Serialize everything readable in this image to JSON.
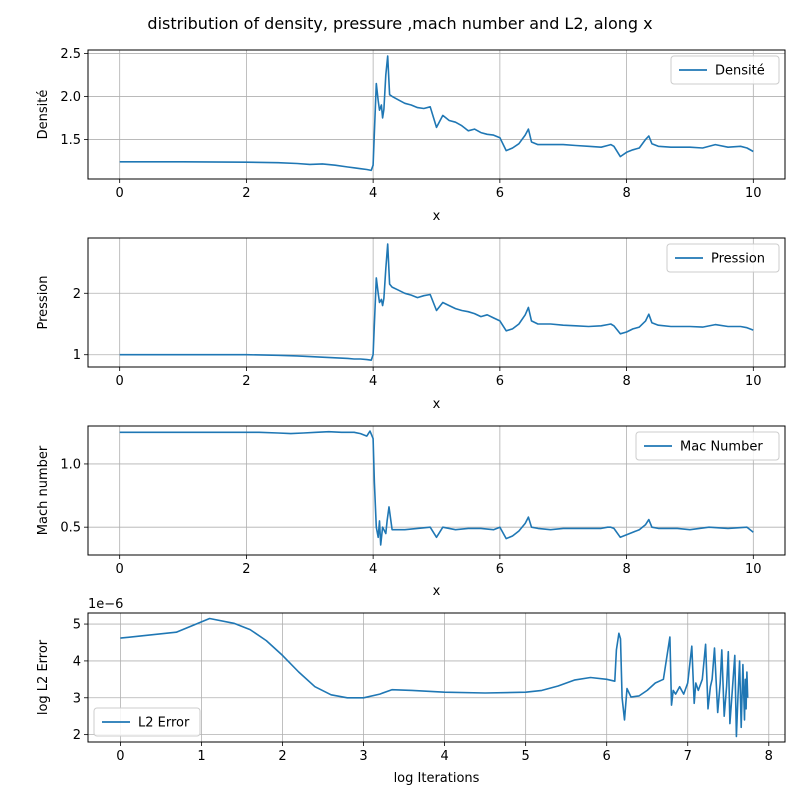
{
  "figure": {
    "title": "distribution of density, pressure ,mach number and L2, along x",
    "line_color": "#1f77b4"
  },
  "chart_data": [
    {
      "type": "line",
      "xlabel": "x",
      "ylabel": "Densité",
      "xlim": [
        -0.5,
        10.5
      ],
      "ylim": [
        1.04,
        2.54
      ],
      "xticks": [
        0,
        2,
        4,
        6,
        8,
        10
      ],
      "yticks": [
        1.5,
        2.0,
        2.5
      ],
      "ytick_labels": [
        "1.5",
        "2.0",
        "2.5"
      ],
      "grid": true,
      "legend_position": "upper right",
      "series": [
        {
          "name": "Densité",
          "x": [
            0,
            1.0,
            2.0,
            2.5,
            2.8,
            3.0,
            3.2,
            3.4,
            3.6,
            3.7,
            3.8,
            3.9,
            3.97,
            4.0,
            4.05,
            4.08,
            4.1,
            4.13,
            4.15,
            4.17,
            4.2,
            4.23,
            4.26,
            4.3,
            4.4,
            4.5,
            4.6,
            4.7,
            4.8,
            4.9,
            5.0,
            5.1,
            5.2,
            5.3,
            5.4,
            5.5,
            5.6,
            5.7,
            5.8,
            5.9,
            6.0,
            6.1,
            6.2,
            6.3,
            6.4,
            6.45,
            6.5,
            6.6,
            6.8,
            7.0,
            7.2,
            7.4,
            7.6,
            7.7,
            7.75,
            7.8,
            7.9,
            8.0,
            8.1,
            8.2,
            8.3,
            8.35,
            8.4,
            8.5,
            8.7,
            9.0,
            9.2,
            9.4,
            9.6,
            9.8,
            9.9,
            10.0
          ],
          "y": [
            1.24,
            1.24,
            1.235,
            1.23,
            1.22,
            1.21,
            1.215,
            1.2,
            1.18,
            1.17,
            1.16,
            1.15,
            1.14,
            1.2,
            2.15,
            1.95,
            1.84,
            1.9,
            1.75,
            1.85,
            2.25,
            2.47,
            2.02,
            2.0,
            1.96,
            1.92,
            1.9,
            1.87,
            1.86,
            1.88,
            1.64,
            1.78,
            1.72,
            1.7,
            1.66,
            1.6,
            1.62,
            1.58,
            1.56,
            1.55,
            1.52,
            1.37,
            1.4,
            1.45,
            1.55,
            1.62,
            1.47,
            1.44,
            1.44,
            1.44,
            1.43,
            1.42,
            1.41,
            1.43,
            1.44,
            1.42,
            1.3,
            1.35,
            1.38,
            1.4,
            1.5,
            1.54,
            1.45,
            1.42,
            1.41,
            1.41,
            1.4,
            1.44,
            1.41,
            1.42,
            1.4,
            1.36
          ]
        }
      ]
    },
    {
      "type": "line",
      "xlabel": "x",
      "ylabel": "Pression",
      "xlim": [
        -0.5,
        10.5
      ],
      "ylim": [
        0.8,
        2.9
      ],
      "xticks": [
        0,
        2,
        4,
        6,
        8,
        10
      ],
      "yticks": [
        1,
        2
      ],
      "ytick_labels": [
        "1",
        "2"
      ],
      "grid": true,
      "legend_position": "upper right",
      "series": [
        {
          "name": "Pression",
          "x": [
            0,
            1.0,
            2.0,
            2.5,
            2.8,
            3.0,
            3.2,
            3.4,
            3.6,
            3.7,
            3.8,
            3.9,
            3.97,
            4.0,
            4.05,
            4.08,
            4.1,
            4.13,
            4.15,
            4.17,
            4.2,
            4.23,
            4.26,
            4.3,
            4.4,
            4.5,
            4.6,
            4.7,
            4.8,
            4.9,
            5.0,
            5.1,
            5.2,
            5.3,
            5.4,
            5.5,
            5.6,
            5.7,
            5.8,
            5.9,
            6.0,
            6.1,
            6.2,
            6.3,
            6.4,
            6.45,
            6.5,
            6.6,
            6.8,
            7.0,
            7.2,
            7.4,
            7.6,
            7.7,
            7.75,
            7.8,
            7.9,
            8.0,
            8.1,
            8.2,
            8.3,
            8.35,
            8.4,
            8.5,
            8.7,
            9.0,
            9.2,
            9.4,
            9.6,
            9.8,
            9.9,
            10.0
          ],
          "y": [
            1.0,
            1.0,
            1.0,
            0.99,
            0.98,
            0.97,
            0.96,
            0.95,
            0.94,
            0.93,
            0.93,
            0.92,
            0.91,
            1.0,
            2.25,
            2.0,
            1.85,
            1.9,
            1.8,
            1.92,
            2.4,
            2.8,
            2.15,
            2.1,
            2.05,
            2.0,
            1.97,
            1.93,
            1.96,
            1.98,
            1.72,
            1.85,
            1.8,
            1.75,
            1.72,
            1.7,
            1.67,
            1.62,
            1.65,
            1.6,
            1.55,
            1.39,
            1.42,
            1.5,
            1.65,
            1.77,
            1.55,
            1.5,
            1.5,
            1.48,
            1.47,
            1.46,
            1.47,
            1.49,
            1.5,
            1.47,
            1.34,
            1.37,
            1.42,
            1.45,
            1.55,
            1.66,
            1.52,
            1.48,
            1.46,
            1.46,
            1.45,
            1.49,
            1.46,
            1.46,
            1.44,
            1.4
          ]
        }
      ]
    },
    {
      "type": "line",
      "xlabel": "x",
      "ylabel": "Mach number",
      "xlim": [
        -0.5,
        10.5
      ],
      "ylim": [
        0.28,
        1.3
      ],
      "xticks": [
        0,
        2,
        4,
        6,
        8,
        10
      ],
      "yticks": [
        0.5,
        1.0
      ],
      "ytick_labels": [
        "0.5",
        "1.0"
      ],
      "grid": true,
      "legend_position": "upper right",
      "series": [
        {
          "name": "Mac Number",
          "x": [
            0,
            1.0,
            2.0,
            2.2,
            2.5,
            2.7,
            2.9,
            3.1,
            3.3,
            3.5,
            3.7,
            3.8,
            3.9,
            3.95,
            4.0,
            4.02,
            4.05,
            4.08,
            4.1,
            4.12,
            4.15,
            4.2,
            4.22,
            4.25,
            4.3,
            4.5,
            4.7,
            4.9,
            5.0,
            5.1,
            5.3,
            5.5,
            5.7,
            5.9,
            6.0,
            6.1,
            6.2,
            6.3,
            6.4,
            6.45,
            6.5,
            6.6,
            6.8,
            7.0,
            7.3,
            7.6,
            7.7,
            7.75,
            7.8,
            7.9,
            8.0,
            8.2,
            8.3,
            8.35,
            8.4,
            8.5,
            8.8,
            9.0,
            9.3,
            9.6,
            9.9,
            10.0
          ],
          "y": [
            1.25,
            1.25,
            1.25,
            1.25,
            1.245,
            1.24,
            1.245,
            1.25,
            1.255,
            1.25,
            1.25,
            1.24,
            1.22,
            1.26,
            1.2,
            0.85,
            0.5,
            0.42,
            0.55,
            0.36,
            0.5,
            0.45,
            0.55,
            0.66,
            0.48,
            0.48,
            0.49,
            0.5,
            0.42,
            0.5,
            0.48,
            0.49,
            0.49,
            0.48,
            0.5,
            0.41,
            0.43,
            0.47,
            0.53,
            0.58,
            0.5,
            0.49,
            0.48,
            0.49,
            0.49,
            0.49,
            0.5,
            0.5,
            0.49,
            0.42,
            0.44,
            0.48,
            0.52,
            0.56,
            0.5,
            0.49,
            0.49,
            0.48,
            0.5,
            0.49,
            0.5,
            0.46
          ]
        }
      ]
    },
    {
      "type": "line",
      "xlabel": "log Iterations",
      "ylabel": "log L2 Error",
      "offset_label": "1e−6",
      "xlim": [
        -0.4,
        8.2
      ],
      "ylim": [
        1.8,
        5.3
      ],
      "xticks": [
        0,
        1,
        2,
        3,
        4,
        5,
        6,
        7,
        8
      ],
      "yticks": [
        2,
        3,
        4,
        5
      ],
      "ytick_labels": [
        "2",
        "3",
        "4",
        "5"
      ],
      "grid": true,
      "legend_position": "lower left",
      "series": [
        {
          "name": "L2 Error",
          "x": [
            0,
            0.69,
            1.1,
            1.4,
            1.6,
            1.8,
            2.0,
            2.2,
            2.4,
            2.6,
            2.8,
            3.0,
            3.2,
            3.35,
            3.6,
            4.0,
            4.5,
            5.0,
            5.2,
            5.4,
            5.6,
            5.8,
            6.0,
            6.1,
            6.12,
            6.15,
            6.17,
            6.19,
            6.22,
            6.25,
            6.3,
            6.4,
            6.5,
            6.6,
            6.7,
            6.78,
            6.8,
            6.82,
            6.85,
            6.9,
            6.95,
            7.0,
            7.05,
            7.08,
            7.1,
            7.13,
            7.18,
            7.22,
            7.25,
            7.28,
            7.3,
            7.33,
            7.37,
            7.4,
            7.42,
            7.45,
            7.48,
            7.5,
            7.52,
            7.55,
            7.58,
            7.6,
            7.62,
            7.64,
            7.66,
            7.68,
            7.7,
            7.71,
            7.72,
            7.73,
            7.74
          ],
          "y": [
            4.62,
            4.78,
            5.15,
            5.02,
            4.85,
            4.55,
            4.15,
            3.7,
            3.3,
            3.08,
            3.0,
            3.0,
            3.1,
            3.22,
            3.2,
            3.15,
            3.13,
            3.15,
            3.2,
            3.32,
            3.48,
            3.55,
            3.5,
            3.45,
            4.3,
            4.75,
            4.6,
            3.0,
            2.4,
            3.25,
            3.02,
            3.05,
            3.2,
            3.4,
            3.5,
            4.65,
            2.8,
            3.2,
            3.1,
            3.3,
            3.1,
            3.4,
            4.4,
            2.85,
            3.4,
            3.2,
            3.5,
            4.45,
            2.7,
            3.3,
            3.5,
            4.35,
            2.6,
            3.4,
            4.3,
            2.5,
            3.3,
            4.25,
            2.3,
            3.2,
            4.15,
            1.95,
            3.05,
            4.0,
            2.2,
            3.9,
            2.4,
            3.5,
            2.7,
            3.7,
            3.0
          ]
        }
      ]
    }
  ]
}
